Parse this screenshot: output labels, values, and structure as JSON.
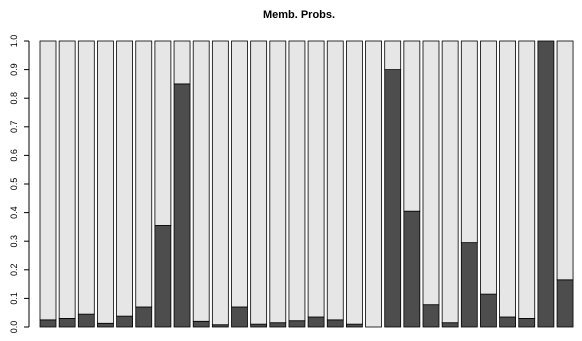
{
  "chart_data": {
    "type": "bar",
    "stacked": true,
    "title": "Memb. Probs.",
    "xlabel": "",
    "ylabel": "",
    "ylim": [
      0,
      1
    ],
    "yticks": [
      0.0,
      0.1,
      0.2,
      0.3,
      0.4,
      0.5,
      0.6,
      0.7,
      0.8,
      0.9,
      1.0
    ],
    "ytick_labels": [
      "0.0",
      "0.1",
      "0.2",
      "0.3",
      "0.4",
      "0.5",
      "0.6",
      "0.7",
      "0.8",
      "0.9",
      "1.0"
    ],
    "grid": false,
    "legend": "none",
    "series": [
      {
        "values": [
          0.025,
          0.03,
          0.045,
          0.013,
          0.038,
          0.07,
          0.355,
          0.85,
          0.02,
          0.008,
          0.07,
          0.01,
          0.015,
          0.022,
          0.035,
          0.025,
          0.01,
          0.0,
          0.9,
          0.405,
          0.078,
          0.015,
          0.295,
          0.115,
          0.035,
          0.03,
          1.0,
          0.165
        ],
        "color": "#4d4d4d"
      },
      {
        "values": [
          0.975,
          0.97,
          0.955,
          0.987,
          0.962,
          0.93,
          0.645,
          0.15,
          0.98,
          0.992,
          0.93,
          0.99,
          0.985,
          0.978,
          0.965,
          0.975,
          0.99,
          1.0,
          0.1,
          0.595,
          0.922,
          0.985,
          0.705,
          0.885,
          0.965,
          0.97,
          0.0,
          0.835
        ],
        "color": "#e6e6e6"
      }
    ]
  }
}
